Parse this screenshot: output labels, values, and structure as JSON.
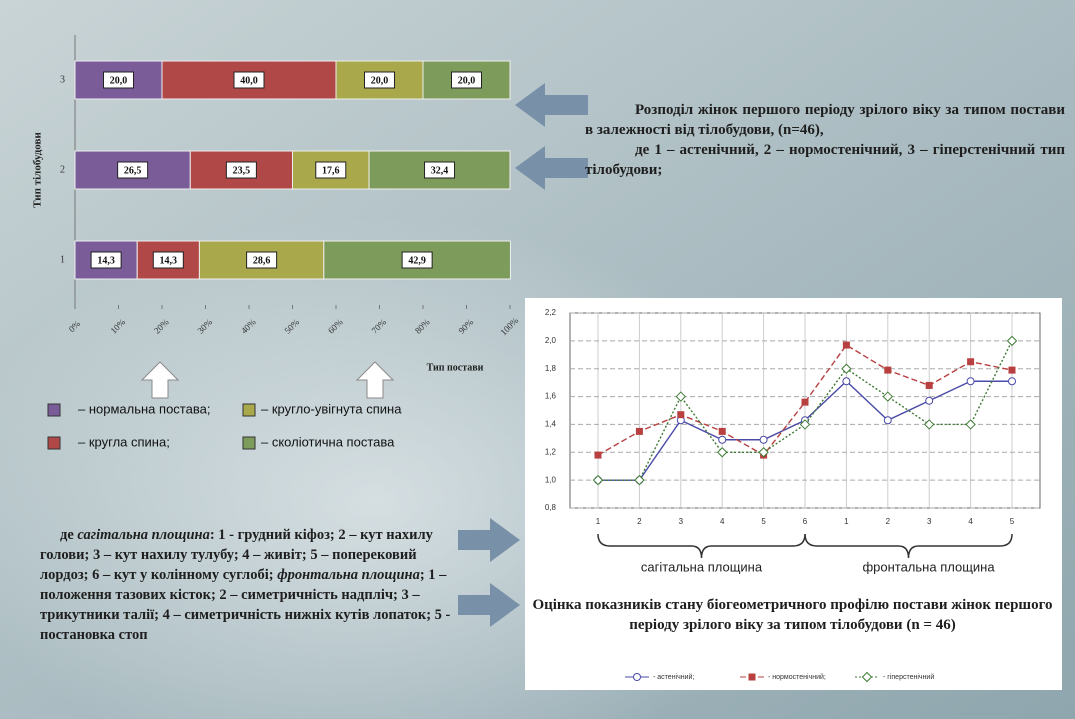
{
  "chart_data": [
    {
      "type": "bar",
      "orientation": "horizontal",
      "stacked": true,
      "ylabel": "Тип тілобудови",
      "xlabel": "Тип постави",
      "categories": [
        "1",
        "2",
        "3"
      ],
      "xlim": [
        0,
        100
      ],
      "xticks": [
        {
          "value": 0,
          "label": "0%"
        },
        {
          "value": 10,
          "label": "10%"
        },
        {
          "value": 20,
          "label": "20%"
        },
        {
          "value": 30,
          "label": "30%"
        },
        {
          "value": 40,
          "label": "40%"
        },
        {
          "value": 50,
          "label": "50%"
        },
        {
          "value": 60,
          "label": "60%"
        },
        {
          "value": 70,
          "label": "70%"
        },
        {
          "value": 80,
          "label": "80%"
        },
        {
          "value": 90,
          "label": "90%"
        },
        {
          "value": 100,
          "label": "100%"
        }
      ],
      "series": [
        {
          "name": "– нормальна постава;",
          "color": "#7a5c99",
          "values": [
            14.3,
            26.5,
            20.0
          ],
          "value_labels": [
            "14,3",
            "26,5",
            "20,0"
          ]
        },
        {
          "name": "– кругла спина;",
          "color": "#b04848",
          "values": [
            14.3,
            23.5,
            40.0
          ],
          "value_labels": [
            "14,3",
            "23,5",
            "40,0"
          ]
        },
        {
          "name": "– кругло-увігнута спина",
          "color": "#a9a84a",
          "values": [
            28.6,
            17.6,
            20.0
          ],
          "value_labels": [
            "28,6",
            "17,6",
            "20,0"
          ]
        },
        {
          "name": "– сколіотична постава",
          "color": "#7d9c5c",
          "values": [
            42.9,
            32.4,
            20.0
          ],
          "value_labels": [
            "42,9",
            "32,4",
            "20,0"
          ]
        }
      ],
      "caption": [
        "Розподіл жінок першого періоду зрілого віку за типом постави в залежності від тілобудови, (n=46),",
        "де 1 – астенічний, 2 – нормостенічний, 3 – гіперстенічний тип тілобудови;"
      ]
    },
    {
      "type": "line",
      "categories": [
        "1",
        "2",
        "3",
        "4",
        "5",
        "6",
        "1",
        "2",
        "3",
        "4",
        "5"
      ],
      "groups": [
        "сагітальна площина",
        "фронтальна площина"
      ],
      "ylim": [
        0.8,
        2.2
      ],
      "yticks": [
        {
          "value": 0.8,
          "label": "0,8"
        },
        {
          "value": 1.0,
          "label": "1,0"
        },
        {
          "value": 1.2,
          "label": "1,2"
        },
        {
          "value": 1.4,
          "label": "1,4"
        },
        {
          "value": 1.6,
          "label": "1,6"
        },
        {
          "value": 1.8,
          "label": "1,8"
        },
        {
          "value": 2.0,
          "label": "2,0"
        },
        {
          "value": 2.2,
          "label": "2,2"
        }
      ],
      "grid": true,
      "series": [
        {
          "name": "- астенічний;",
          "color": "#4a4aa8",
          "dash": "solid",
          "marker": "circle",
          "values": [
            1.0,
            1.0,
            1.43,
            1.29,
            1.29,
            1.43,
            1.71,
            1.43,
            1.57,
            1.71,
            1.71
          ]
        },
        {
          "name": "- нормостенічний;",
          "color": "#b84040",
          "dash": "dashed",
          "marker": "square",
          "values": [
            1.18,
            1.35,
            1.47,
            1.35,
            1.18,
            1.56,
            1.97,
            1.79,
            1.68,
            1.85,
            1.79
          ]
        },
        {
          "name": "- гіперстенічний",
          "color": "#3f7a35",
          "dash": "dotted",
          "marker": "diamond",
          "values": [
            1.0,
            1.0,
            1.6,
            1.2,
            1.2,
            1.4,
            1.8,
            1.6,
            1.4,
            1.4,
            2.0
          ]
        }
      ],
      "caption": "Оцінка показників стану біогеометричного профілю постави жінок першого періоду зрілого віку за типом тілобудови (n = 46)"
    }
  ],
  "notes": [
    "де ",
    "сагітальна площина",
    ": 1 - грудний кіфоз; 2 – кут нахилу голови; 3 – кут нахилу тулубу; 4 – живіт; 5 – поперековий лордоз; 6 – кут у колінному суглобі;",
    "фронтальна площина",
    "; 1 – положення тазових кісток; 2 – симетричність надпліч; 3 – трикутники талії; 4 – симетричність нижніх кутів лопаток; 5 - постановка стоп"
  ]
}
